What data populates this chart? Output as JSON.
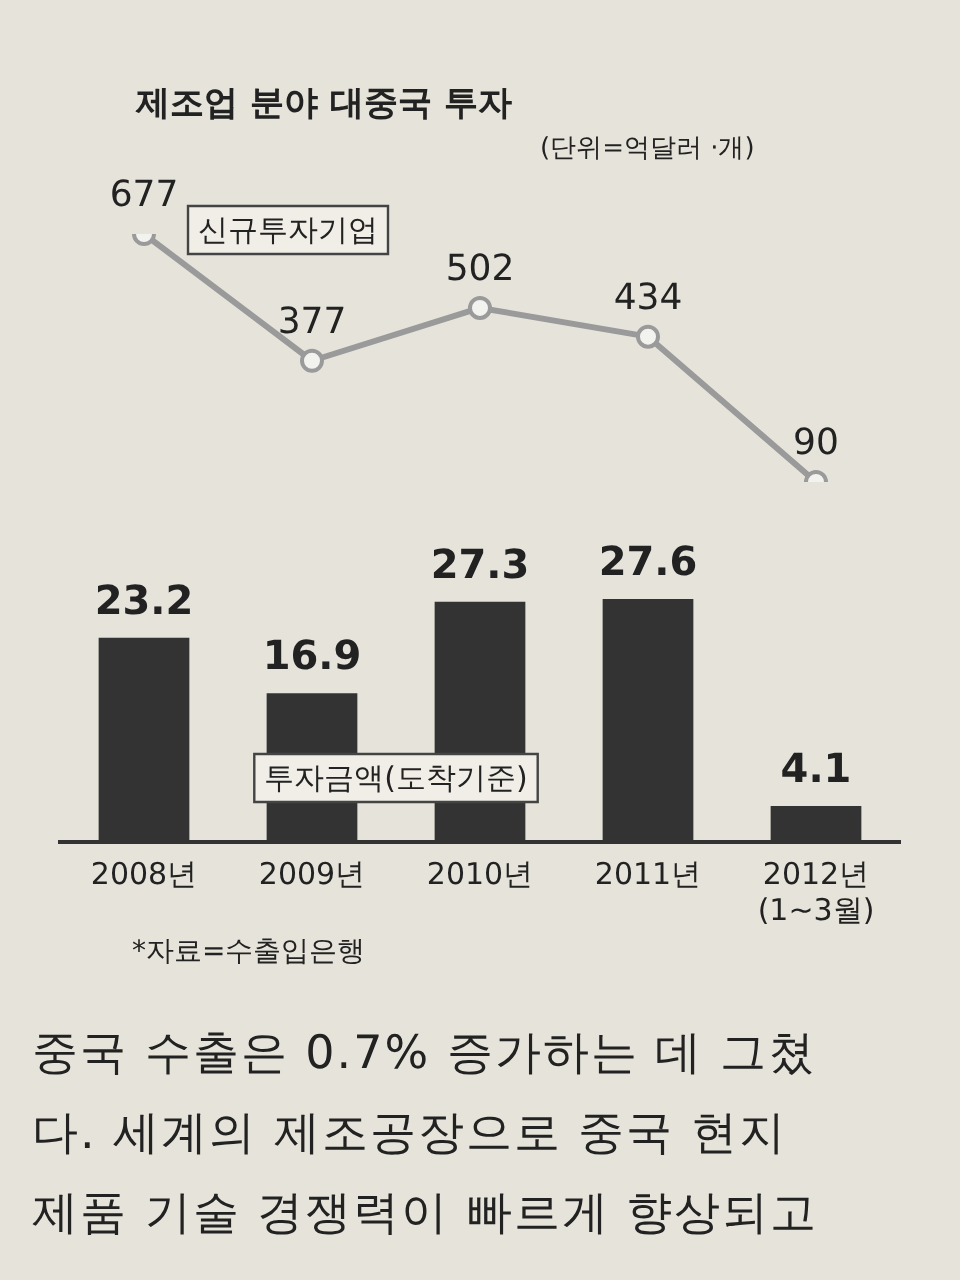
{
  "chart_data": [
    {
      "type": "line",
      "title": "제조업 분야 대중국 투자",
      "subtitle": "(단위=억달러 ·개)",
      "series": [
        {
          "name": "신규투자기업",
          "color": "#9a9a9a",
          "values": [
            677,
            377,
            502,
            434,
            90
          ]
        }
      ],
      "data_labels": true,
      "marker": "circle"
    },
    {
      "type": "bar",
      "categories": [
        "2008년",
        "2009년",
        "2010년",
        "2011년",
        "2012년\n(1~3월)"
      ],
      "series": [
        {
          "name": "투자금액(도착기준)",
          "color": "#333333",
          "values": [
            23.2,
            16.9,
            27.3,
            27.6,
            4.1
          ]
        }
      ],
      "data_labels": true,
      "annotations": [
        "*자료=수출입은행",
        "중국 수출은 0.7% 증가하는 데 그쳤",
        "다. 세계의 제조공장으로 중국 현지",
        "제품 기술 경쟁력이 빠르게 향상되고"
      ]
    }
  ]
}
